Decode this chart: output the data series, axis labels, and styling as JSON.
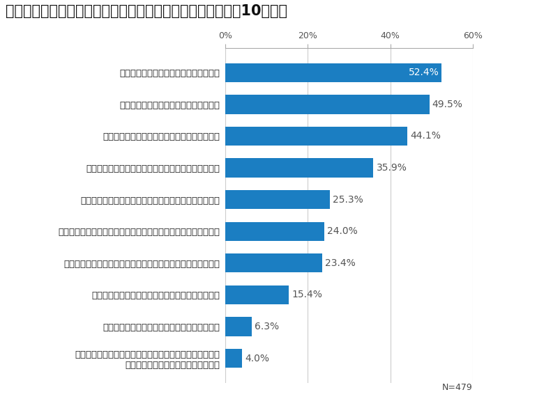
{
  "title": "企業トップのリーダーシップコミュニケーション能力を問う10の設問",
  "categories": [
    "トップと広報が情報交換する機会がある",
    "広報戦略は、経営戦略とリンクしている",
    "トップは定期的にメディアの取材を受けている",
    "トップと従業員が直接会う機会を定期的に設けている",
    "トップがメディアと懇談する機会を定期的に設けている",
    "危機管理委員会等が定期的に開催され、広報部門が参画している",
    "トップのメッセージを専門的に作成する社内・外の体制がある",
    "グループ会社等で、自社の広報戦略を共有している",
    "現在のトップは広報部門を経験したことがある",
    "トップのプレゼンテーション力・表現力を強化するための\nトレーニングを定期的に実施している"
  ],
  "values": [
    52.4,
    49.5,
    44.1,
    35.9,
    25.3,
    24.0,
    23.4,
    15.4,
    6.3,
    4.0
  ],
  "bar_color": "#1B7EC2",
  "title_fontsize": 15,
  "label_fontsize": 9.5,
  "value_fontsize": 10,
  "axis_tick_fontsize": 9,
  "xlim": [
    0,
    60
  ],
  "xticks": [
    0,
    20,
    40,
    60
  ],
  "xticklabels": [
    "0%",
    "20%",
    "40%",
    "60%"
  ],
  "n_label": "N=479",
  "background_color": "#ffffff",
  "grid_color": "#cccccc",
  "value_inside_threshold": 50.0
}
